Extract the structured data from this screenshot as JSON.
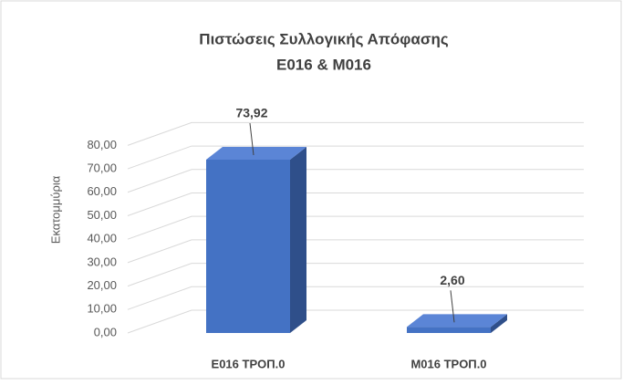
{
  "chart_data": {
    "type": "bar3d",
    "title": "Πιστώσεις Συλλογικής Απόφασης",
    "subtitle": "Ε016 & Μ016",
    "ylabel": "Εκατομμύρια",
    "categories": [
      "Ε016 ΤΡΟΠ.0",
      "Μ016 ΤΡΟΠ.0"
    ],
    "values": [
      73.92,
      2.6
    ],
    "value_labels": [
      "73,92",
      "2,60"
    ],
    "color": "#4472c4",
    "ylim": [
      0,
      100
    ],
    "yticks": [
      {
        "value": 0,
        "label": "0,00"
      },
      {
        "value": 10,
        "label": "10,00"
      },
      {
        "value": 20,
        "label": "20,00"
      },
      {
        "value": 30,
        "label": "30,00"
      },
      {
        "value": 40,
        "label": "40,00"
      },
      {
        "value": 50,
        "label": "50,00"
      },
      {
        "value": 60,
        "label": "60,00"
      },
      {
        "value": 70,
        "label": "70,00"
      },
      {
        "value": 80,
        "label": "80,00"
      }
    ],
    "grid": true
  }
}
